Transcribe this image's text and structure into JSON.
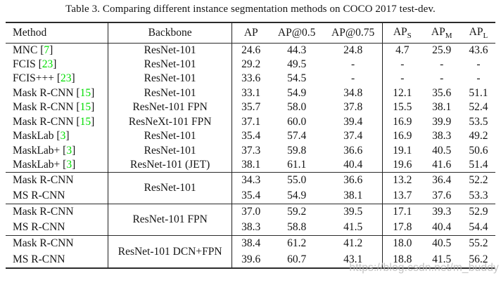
{
  "caption": "Table 3. Comparing different instance segmentation methods on COCO 2017 test-dev.",
  "watermark": "https://blog.csdn.net/m_buddy",
  "colors": {
    "citation": "#00dd00",
    "rule": "#2b2b2b",
    "text": "#141414",
    "watermark": "#b9b9b9"
  },
  "header": {
    "method": "Method",
    "backbone": "Backbone",
    "ap": "AP",
    "ap50": "AP@0.5",
    "ap75": "AP@0.75",
    "aps_base": "AP",
    "aps_sub": "S",
    "apm_base": "AP",
    "apm_sub": "M",
    "apl_base": "AP",
    "apl_sub": "L"
  },
  "sections": [
    {
      "rows": [
        {
          "method": "MNC",
          "cite": "7",
          "backbone": "ResNet-101",
          "values": [
            "24.6",
            "44.3",
            "24.8",
            "4.7",
            "25.9",
            "43.6"
          ]
        },
        {
          "method": "FCIS",
          "cite": "23",
          "backbone": "ResNet-101",
          "values": [
            "29.2",
            "49.5",
            "-",
            "-",
            "-",
            "-"
          ]
        },
        {
          "method": "FCIS+++",
          "cite": "23",
          "backbone": "ResNet-101",
          "values": [
            "33.6",
            "54.5",
            "-",
            "-",
            "-",
            "-"
          ]
        },
        {
          "method": "Mask R-CNN",
          "cite": "15",
          "backbone": "ResNet-101",
          "values": [
            "33.1",
            "54.9",
            "34.8",
            "12.1",
            "35.6",
            "51.1"
          ]
        },
        {
          "method": "Mask R-CNN",
          "cite": "15",
          "backbone": "ResNet-101 FPN",
          "values": [
            "35.7",
            "58.0",
            "37.8",
            "15.5",
            "38.1",
            "52.4"
          ]
        },
        {
          "method": "Mask R-CNN",
          "cite": "15",
          "backbone": "ResNeXt-101 FPN",
          "values": [
            "37.1",
            "60.0",
            "39.4",
            "16.9",
            "39.9",
            "53.5"
          ]
        },
        {
          "method": "MaskLab",
          "cite": "3",
          "backbone": "ResNet-101",
          "values": [
            "35.4",
            "57.4",
            "37.4",
            "16.9",
            "38.3",
            "49.2"
          ]
        },
        {
          "method": "MaskLab+",
          "cite": "3",
          "backbone": "ResNet-101",
          "values": [
            "37.3",
            "59.8",
            "36.6",
            "19.1",
            "40.5",
            "50.6"
          ]
        },
        {
          "method": "MaskLab+",
          "cite": "3",
          "backbone": "ResNet-101 (JET)",
          "values": [
            "38.1",
            "61.1",
            "40.4",
            "19.6",
            "41.6",
            "51.4"
          ]
        }
      ]
    },
    {
      "shared_backbone": "ResNet-101",
      "rows": [
        {
          "method": "Mask R-CNN",
          "values": [
            "34.3",
            "55.0",
            "36.6",
            "13.2",
            "36.4",
            "52.2"
          ]
        },
        {
          "method": "MS R-CNN",
          "values": [
            "35.4",
            "54.9",
            "38.1",
            "13.7",
            "37.6",
            "53.3"
          ]
        }
      ]
    },
    {
      "shared_backbone": "ResNet-101 FPN",
      "rows": [
        {
          "method": "Mask R-CNN",
          "values": [
            "37.0",
            "59.2",
            "39.5",
            "17.1",
            "39.3",
            "52.9"
          ]
        },
        {
          "method": "MS R-CNN",
          "values": [
            "38.3",
            "58.8",
            "41.5",
            "17.8",
            "40.4",
            "54.4"
          ]
        }
      ]
    },
    {
      "shared_backbone": "ResNet-101 DCN+FPN",
      "rows": [
        {
          "method": "Mask R-CNN",
          "values": [
            "38.4",
            "61.2",
            "41.2",
            "18.0",
            "40.5",
            "55.2"
          ]
        },
        {
          "method": "MS R-CNN",
          "values": [
            "39.6",
            "60.7",
            "43.1",
            "18.8",
            "41.5",
            "56.2"
          ]
        }
      ]
    }
  ]
}
